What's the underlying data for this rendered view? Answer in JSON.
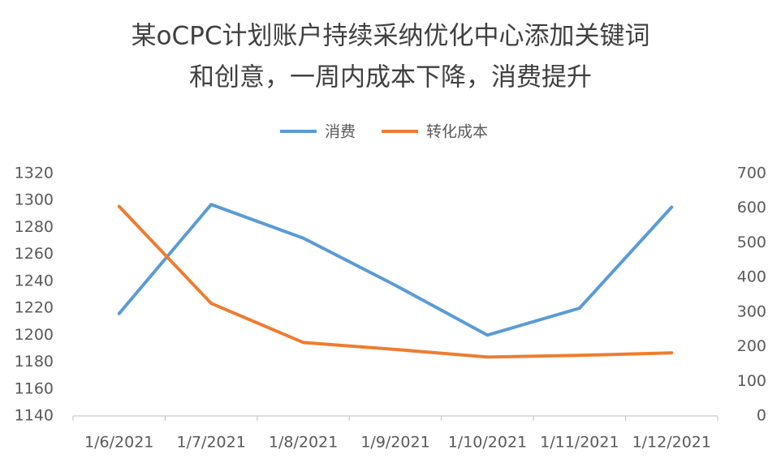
{
  "chart_data": {
    "type": "line",
    "title": [
      "某oCPC计划账户持续采纳优化中心添加关键词",
      "和创意，一周内成本下降，消费提升"
    ],
    "categories": [
      "1/6/2021",
      "1/7/2021",
      "1/8/2021",
      "1/9/2021",
      "1/10/2021",
      "1/11/2021",
      "1/12/2021"
    ],
    "series": [
      {
        "name": "消费",
        "color": "#5b9bd5",
        "values": [
          1216,
          1297,
          1272,
          1237,
          1200,
          1220,
          1295
        ]
      },
      {
        "name": "转化成本",
        "color": "#ed7d31",
        "axis": "y2",
        "values": [
          605,
          325,
          212,
          192,
          170,
          175,
          182
        ]
      }
    ],
    "ylim": [
      1140,
      1320
    ],
    "yticks": [
      1140,
      1160,
      1180,
      1200,
      1220,
      1240,
      1260,
      1280,
      1300,
      1320
    ],
    "y2lim": [
      0,
      700
    ],
    "y2ticks": [
      0,
      100,
      200,
      300,
      400,
      500,
      600,
      700
    ],
    "grid": false,
    "legend": "top"
  }
}
